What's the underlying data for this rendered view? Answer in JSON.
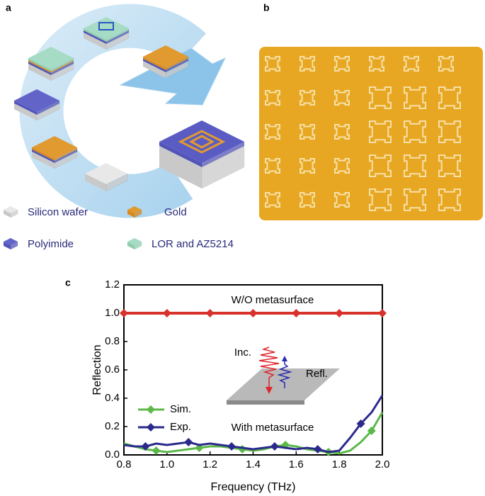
{
  "panel_a": {
    "label": "a",
    "legend": [
      "Silicon wafer",
      "Gold",
      "Polyimide",
      "LOR and AZ5214"
    ]
  },
  "panel_b": {
    "label": "b"
  },
  "chart_data": {
    "type": "line",
    "panel_label": "c",
    "x_label": "Frequency (THz)",
    "y_label": "Reflection",
    "annotations": [
      "With metasurface",
      "Inc.",
      "Refl."
    ],
    "x": [
      0.8,
      0.85,
      0.9,
      0.95,
      1.0,
      1.05,
      1.1,
      1.15,
      1.2,
      1.25,
      1.3,
      1.35,
      1.4,
      1.45,
      1.5,
      1.55,
      1.6,
      1.65,
      1.7,
      1.75,
      1.8,
      1.85,
      1.9,
      1.95,
      2.0
    ],
    "series": [
      {
        "name": "W/O metasurface",
        "color": "#d7322b",
        "values": [
          1.0,
          1.0,
          1.0,
          1.0,
          1.0,
          1.0,
          1.0,
          1.0,
          1.0,
          1.0,
          1.0,
          1.0,
          1.0,
          1.0,
          1.0,
          1.0,
          1.0,
          1.0,
          1.0,
          1.0,
          1.0,
          1.0,
          1.0,
          1.0,
          1.0
        ]
      },
      {
        "name": "Sim.",
        "color": "#5cb848",
        "values": [
          0.08,
          0.06,
          0.04,
          0.03,
          0.02,
          0.03,
          0.04,
          0.05,
          0.06,
          0.06,
          0.05,
          0.04,
          0.03,
          0.04,
          0.06,
          0.07,
          0.06,
          0.04,
          0.03,
          0.02,
          0.01,
          0.03,
          0.09,
          0.17,
          0.3
        ]
      },
      {
        "name": "Exp.",
        "color": "#2b2a8c",
        "values": [
          0.07,
          0.06,
          0.06,
          0.08,
          0.07,
          0.08,
          0.09,
          0.07,
          0.08,
          0.07,
          0.06,
          0.05,
          0.04,
          0.05,
          0.06,
          0.05,
          0.04,
          0.05,
          0.04,
          0.02,
          0.03,
          0.12,
          0.22,
          0.3,
          0.42
        ]
      }
    ],
    "xlim": [
      0.8,
      2.0
    ],
    "xticks": [
      0.8,
      {
        "value": 1,
        "label": "1.0"
      },
      1.2,
      1.4,
      1.6,
      1.8,
      {
        "value": 2,
        "label": "2.0"
      }
    ],
    "ylim": [
      0,
      1.2
    ],
    "yticks": [
      {
        "value": 0,
        "label": "0.0"
      },
      0.2,
      0.4,
      0.6,
      0.8,
      {
        "value": 1,
        "label": "1.0"
      },
      1.2
    ],
    "grid": false,
    "legend": "lower left"
  }
}
